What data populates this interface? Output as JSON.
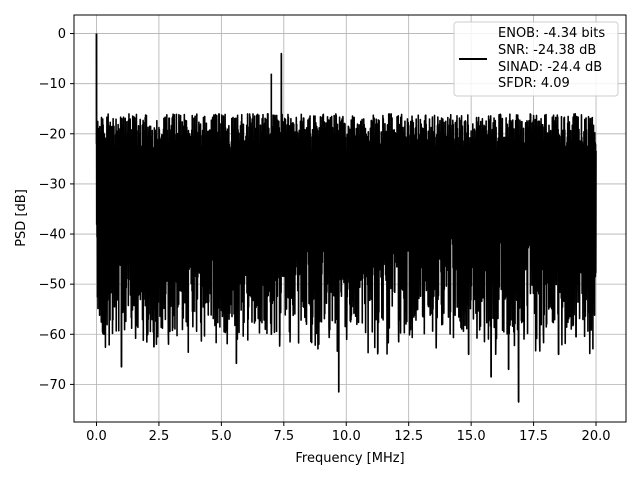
{
  "chart_data": {
    "type": "line",
    "xlabel": "Frequency [MHz]",
    "ylabel": "PSD [dB]",
    "xlim": [
      -0.9,
      21.2
    ],
    "ylim": [
      -77.5,
      3.7
    ],
    "xticks": [
      0.0,
      2.5,
      5.0,
      7.5,
      10.0,
      12.5,
      15.0,
      17.5,
      20.0
    ],
    "xtick_labels": [
      "0.0",
      "2.5",
      "5.0",
      "7.5",
      "10.0",
      "12.5",
      "15.0",
      "17.5",
      "20.0"
    ],
    "yticks": [
      0,
      -10,
      -20,
      -30,
      -40,
      -50,
      -60,
      -70
    ],
    "ytick_labels": [
      "0",
      "−10",
      "−20",
      "−30",
      "−40",
      "−50",
      "−60",
      "−70"
    ],
    "grid": true,
    "legend_position": "top-right",
    "legend_lines": [
      "ENOB: -4.34 bits",
      "SNR: -24.38 dB",
      "SINAD: -24.4 dB",
      "SFDR: 4.09"
    ],
    "series": [
      {
        "color": "#000000",
        "noise_floor_range": [
          -60,
          -16
        ],
        "peaks": [
          {
            "x": 0.0,
            "y": 0.0
          },
          {
            "x": 7.0,
            "y": -8.0
          },
          {
            "x": 7.4,
            "y": -4.0
          }
        ],
        "dips": [
          {
            "x": 0.3,
            "y": -60.0
          },
          {
            "x": 1.0,
            "y": -66.5
          },
          {
            "x": 2.3,
            "y": -62.5
          },
          {
            "x": 5.6,
            "y": -65.8
          },
          {
            "x": 7.0,
            "y": -60.0
          },
          {
            "x": 8.9,
            "y": -62.0
          },
          {
            "x": 9.7,
            "y": -71.5
          },
          {
            "x": 12.1,
            "y": -61.5
          },
          {
            "x": 14.9,
            "y": -64.0
          },
          {
            "x": 15.8,
            "y": -68.5
          },
          {
            "x": 16.5,
            "y": -67.0
          },
          {
            "x": 16.9,
            "y": -73.5
          },
          {
            "x": 18.5,
            "y": -64.0
          },
          {
            "x": 19.2,
            "y": -60.5
          }
        ],
        "x_range": [
          0.0,
          20.0
        ]
      }
    ]
  }
}
